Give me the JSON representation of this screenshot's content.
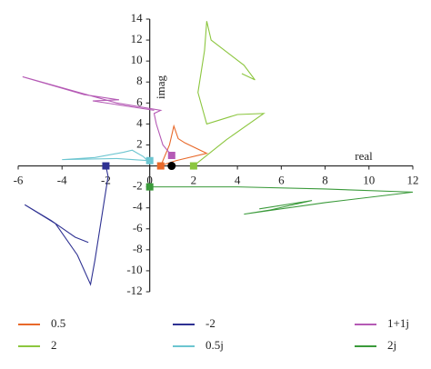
{
  "chart_data": {
    "type": "line",
    "x_label": "real",
    "y_label": "imag",
    "xlim": [
      -6,
      12
    ],
    "ylim": [
      -12,
      14
    ],
    "xticks": [
      -6,
      -4,
      -2,
      0,
      2,
      4,
      6,
      8,
      10,
      12
    ],
    "yticks": [
      -12,
      -10,
      -8,
      -6,
      -4,
      -2,
      2,
      4,
      6,
      8,
      10,
      12,
      14
    ],
    "series": [
      {
        "name": "0.5",
        "color": "#e8692a",
        "x": [
          0.5,
          0.9,
          1.1,
          1.3,
          1.6,
          2.6,
          1.2,
          0.6
        ],
        "y": [
          0,
          2,
          3.8,
          2.6,
          2.2,
          1.2,
          0.5,
          0.1
        ]
      },
      {
        "name": "2",
        "color": "#8cc63f",
        "x": [
          2,
          3.5,
          5.2,
          4,
          2.6,
          2.2,
          2.5,
          2.6,
          2.8,
          3.3,
          4.3,
          4.8,
          4.2
        ],
        "y": [
          0,
          2.5,
          5,
          4.9,
          4,
          7,
          11,
          13.8,
          12,
          11.2,
          9.6,
          8.2,
          8.8
        ]
      },
      {
        "name": "-2",
        "color": "#2e3192",
        "x": [
          -2,
          -1.9,
          -2.2,
          -2.5,
          -2.7,
          -3.3,
          -4.3,
          -5.7,
          -4.5,
          -3.4,
          -2.8
        ],
        "y": [
          0,
          -1,
          -5,
          -9,
          -11.3,
          -8.5,
          -5.5,
          -3.7,
          -5.2,
          -6.8,
          -7.3
        ]
      },
      {
        "name": "0.5j",
        "color": "#6cc5d0",
        "x": [
          0,
          -1.5,
          -4,
          -2.5,
          -1.2,
          -0.8,
          -0.3,
          0
        ],
        "y": [
          0.5,
          0.7,
          0.6,
          0.8,
          1.3,
          1.5,
          0.9,
          0.3
        ]
      },
      {
        "name": "1+1j",
        "color": "#b55ab5",
        "x": [
          1,
          0.6,
          0.3,
          0.2,
          0.5,
          -1.5,
          -5.8,
          -3,
          -1.4,
          -2.6,
          0.2
        ],
        "y": [
          1,
          2,
          4,
          5,
          5.3,
          6,
          8.5,
          6.8,
          6.3,
          6.2,
          5.3
        ]
      },
      {
        "name": "2j",
        "color": "#3a9a3a",
        "x": [
          0,
          4,
          8,
          12,
          8,
          4.3,
          5.5,
          7.4,
          5
        ],
        "y": [
          -2,
          -2,
          -2.2,
          -2.5,
          -3.5,
          -4.6,
          -4.2,
          -3.3,
          -4.1
        ]
      }
    ],
    "reference_point": {
      "x": 1,
      "y": 0,
      "color": "#000000"
    }
  }
}
